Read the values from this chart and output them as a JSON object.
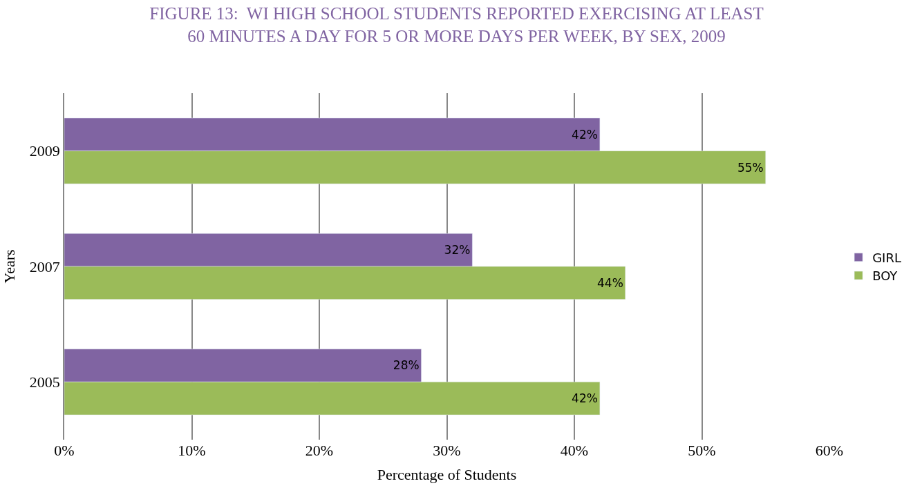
{
  "chart_data": {
    "type": "bar",
    "orientation": "horizontal",
    "title": "FIGURE 13:  WI HIGH SCHOOL STUDENTS REPORTED EXERCISING AT LEAST\n60 MINUTES A DAY FOR 5 OR MORE DAYS PER WEEK, BY SEX, 2009",
    "xlabel": "Percentage of Students",
    "ylabel": "Years",
    "categories": [
      "2009",
      "2007",
      "2005"
    ],
    "series": [
      {
        "name": "GIRL",
        "color": "#8064a2",
        "values": [
          42,
          32,
          28
        ],
        "value_labels": [
          "42%",
          "32%",
          "28%"
        ]
      },
      {
        "name": "BOY",
        "color": "#9bbb59",
        "values": [
          55,
          44,
          42
        ],
        "value_labels": [
          "55%",
          "44%",
          "42%"
        ]
      }
    ],
    "xlim": [
      0,
      60
    ],
    "xticks": [
      {
        "value": 0,
        "label": "0%"
      },
      {
        "value": 10,
        "label": "10%"
      },
      {
        "value": 20,
        "label": "20%"
      },
      {
        "value": 30,
        "label": "30%"
      },
      {
        "value": 40,
        "label": "40%"
      },
      {
        "value": 50,
        "label": "50%"
      },
      {
        "value": 60,
        "label": "60%"
      }
    ],
    "grid": "x",
    "legend": "right"
  }
}
